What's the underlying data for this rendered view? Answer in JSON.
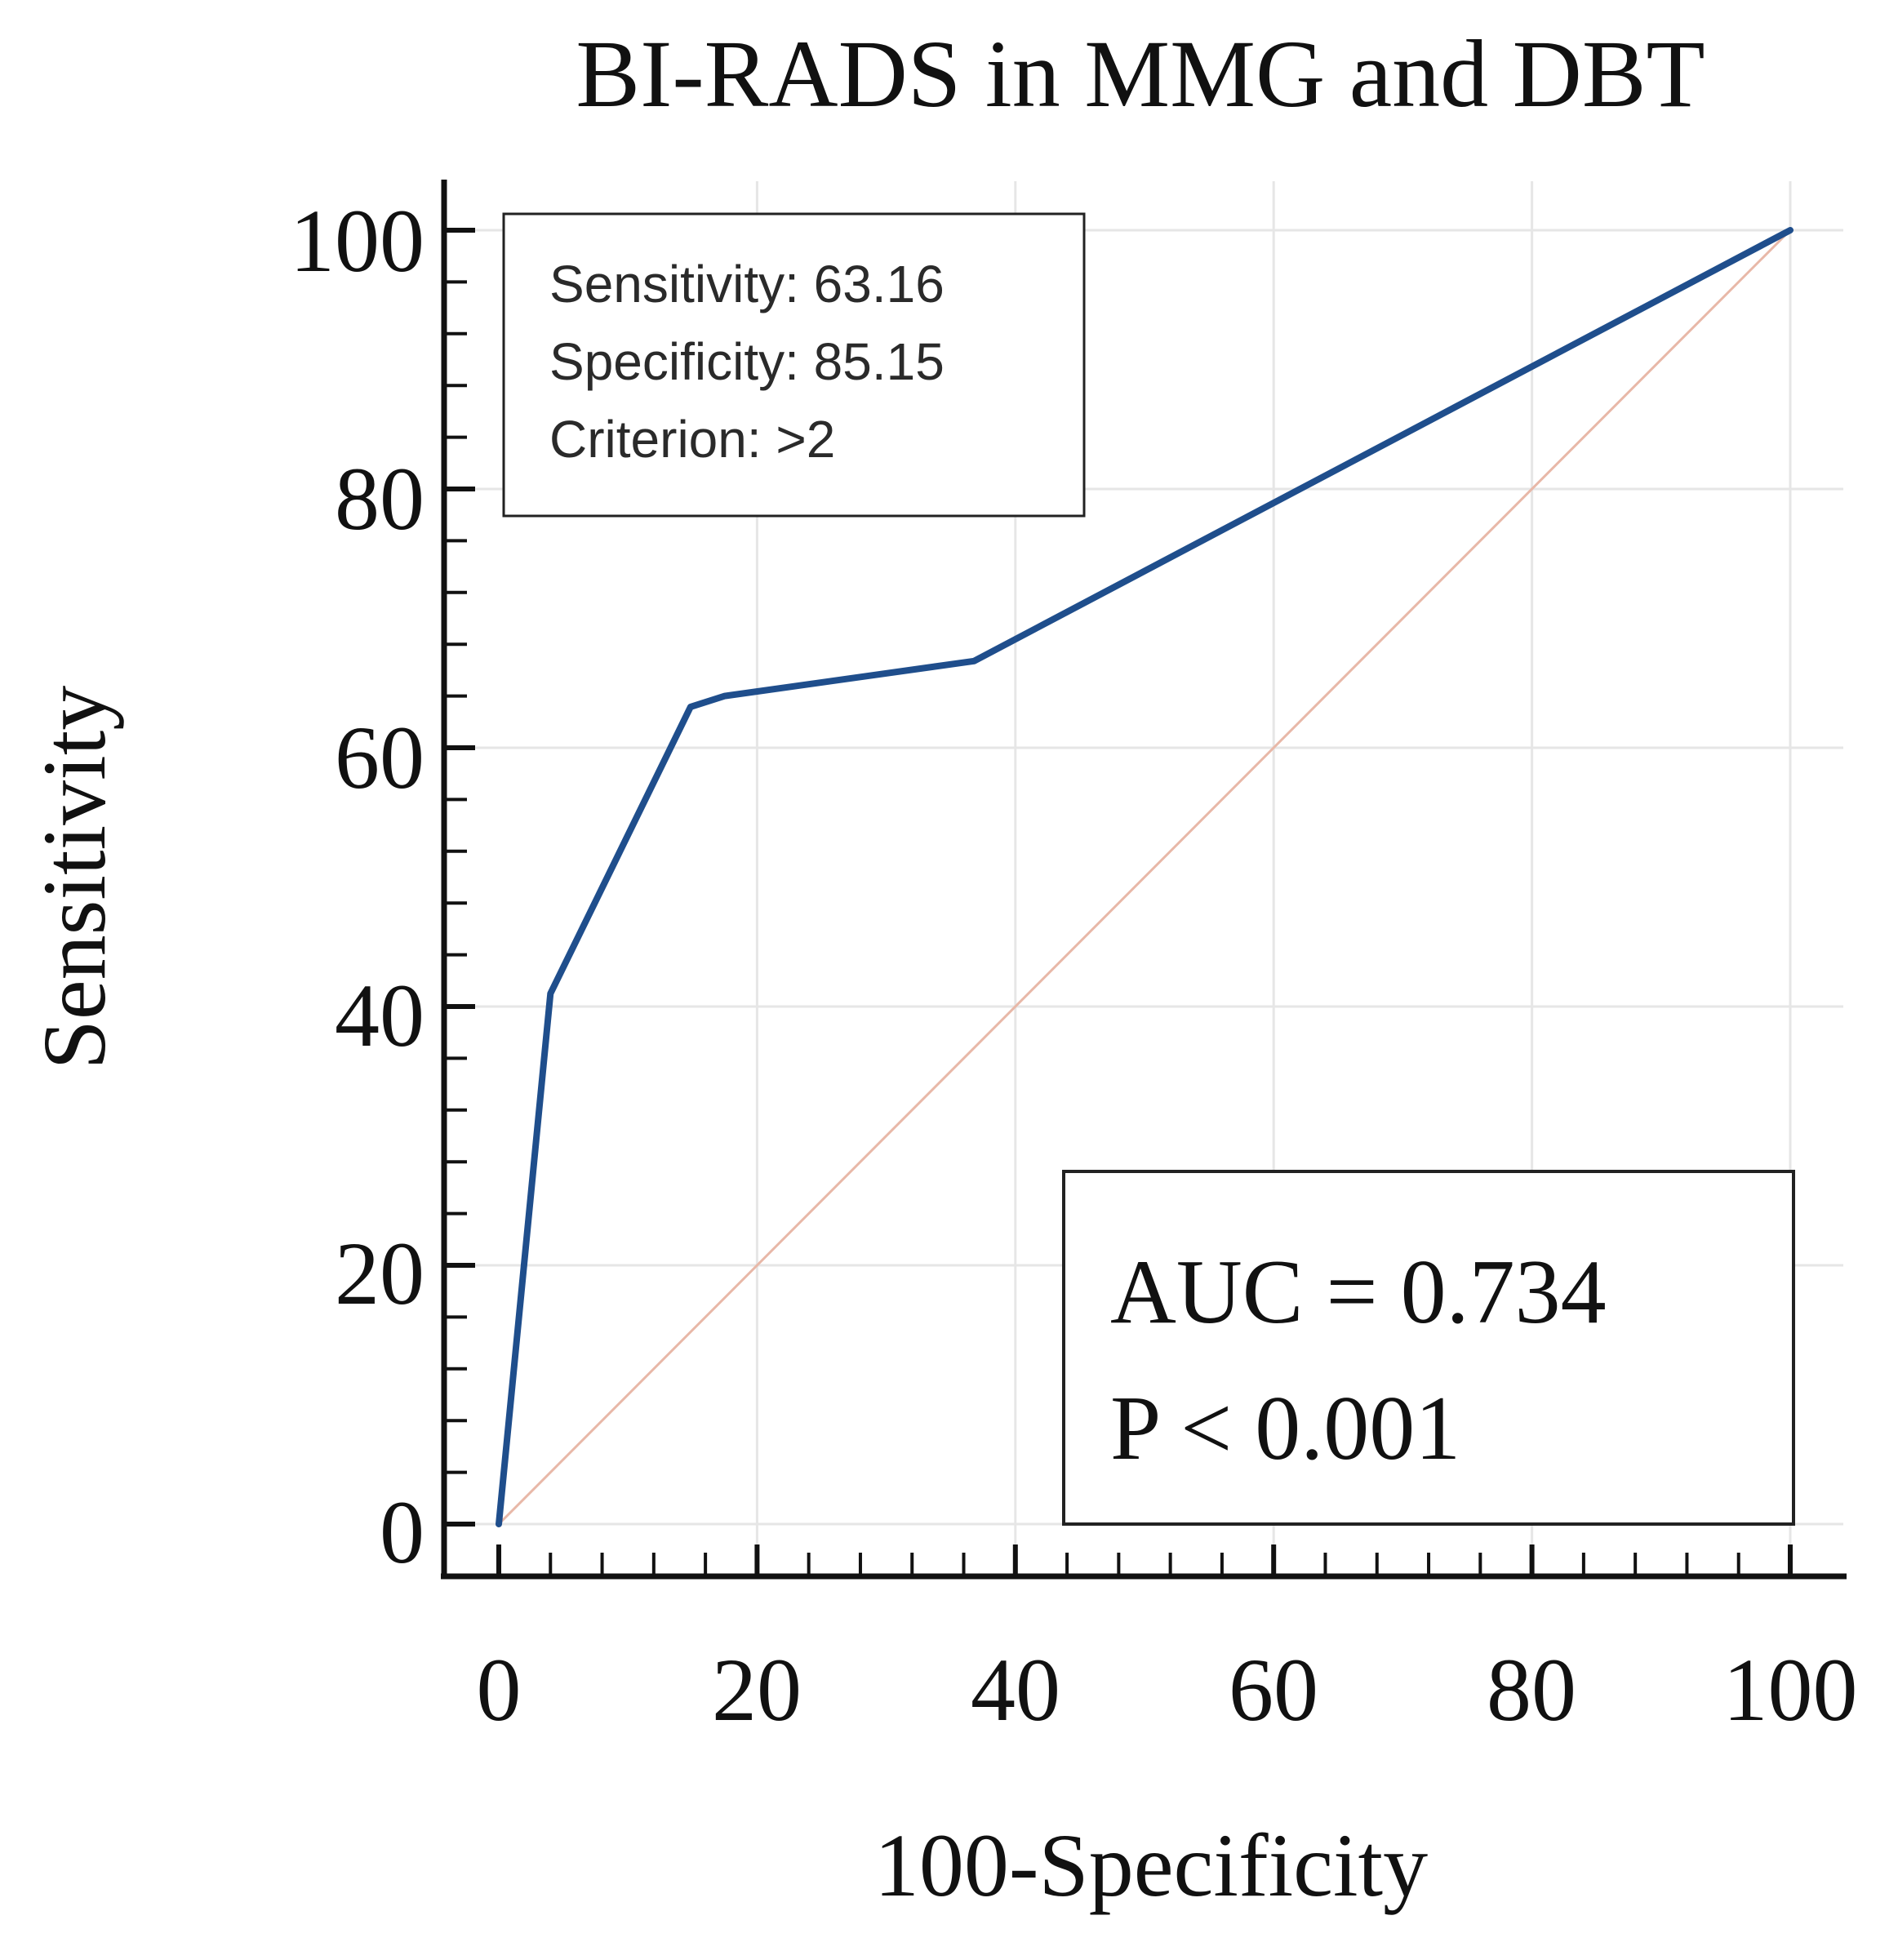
{
  "chart_data": {
    "type": "line",
    "title": "BI-RADS in MMG and DBT",
    "xlabel": "100-Specificity",
    "ylabel": "Sensitivity",
    "xlim": [
      0,
      100
    ],
    "ylim": [
      0,
      100
    ],
    "x_ticks": [
      "0",
      "20",
      "40",
      "60",
      "80",
      "100"
    ],
    "y_ticks": [
      "0",
      "20",
      "40",
      "60",
      "80",
      "100"
    ],
    "grid": true,
    "series": [
      {
        "color": "#1f4e8c",
        "x": [
          0,
          4,
          14.85,
          17.5,
          36.8,
          100
        ],
        "y": [
          0,
          41,
          63.16,
          64,
          66.7,
          100
        ]
      },
      {
        "color": "#e8b8a8",
        "x": [
          0,
          100
        ],
        "y": [
          0,
          100
        ]
      }
    ],
    "annotations": {
      "criterion_box": {
        "sensitivity": "Sensitivity: 63.16",
        "specificity": "Specificity: 85.15",
        "criterion": "Criterion: >2"
      },
      "stats_box": {
        "auc": "AUC = 0.734",
        "p": "P < 0.001"
      }
    }
  }
}
